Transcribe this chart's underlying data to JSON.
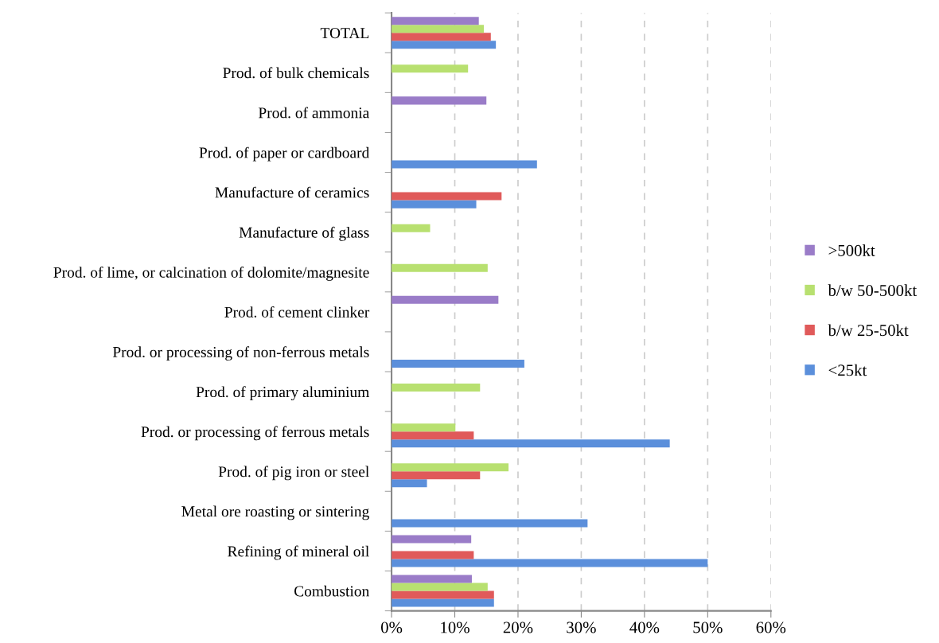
{
  "chart_data": {
    "type": "bar",
    "orientation": "horizontal",
    "categories": [
      "TOTAL",
      "Prod. of bulk chemicals",
      "Prod. of ammonia",
      "Prod. of paper or cardboard",
      "Manufacture of ceramics",
      "Manufacture of glass",
      "Prod. of lime, or calcination of dolomite/magnesite",
      "Prod. of cement clinker",
      "Prod. or processing of non-ferrous metals",
      "Prod. of primary aluminium",
      "Prod. or processing of ferrous metals",
      "Prod. of pig iron or steel",
      "Metal ore roasting or sintering",
      "Refining of mineral oil",
      "Combustion"
    ],
    "series": [
      {
        "name": "<25kt",
        "color": "#5b8fdb",
        "values": [
          16.5,
          null,
          null,
          23.0,
          13.4,
          null,
          null,
          null,
          21.0,
          null,
          44.0,
          5.6,
          31.0,
          50.0,
          16.2
        ]
      },
      {
        "name": "b/w 25-50kt",
        "color": "#e05a5a",
        "values": [
          15.7,
          null,
          null,
          null,
          17.4,
          null,
          null,
          null,
          null,
          null,
          13.0,
          14.0,
          null,
          13.0,
          16.2
        ]
      },
      {
        "name": "b/w 50-500kt",
        "color": "#b8e070",
        "values": [
          14.6,
          12.1,
          null,
          null,
          null,
          6.1,
          15.2,
          null,
          null,
          14.0,
          10.1,
          18.5,
          null,
          null,
          15.2
        ]
      },
      {
        "name": ">500kt",
        "color": "#9a7cc8",
        "values": [
          13.8,
          null,
          15.0,
          null,
          null,
          null,
          null,
          16.9,
          null,
          null,
          null,
          null,
          null,
          12.6,
          12.7
        ]
      }
    ],
    "xlim": [
      0,
      60
    ],
    "xticks": [
      {
        "value": 0,
        "label": "0%"
      },
      {
        "value": 10,
        "label": "10%"
      },
      {
        "value": 20,
        "label": "20%"
      },
      {
        "value": 30,
        "label": "30%"
      },
      {
        "value": 40,
        "label": "40%"
      },
      {
        "value": 50,
        "label": "50%"
      },
      {
        "value": 60,
        "label": "60%"
      }
    ],
    "grid": "x",
    "legend": "right"
  }
}
